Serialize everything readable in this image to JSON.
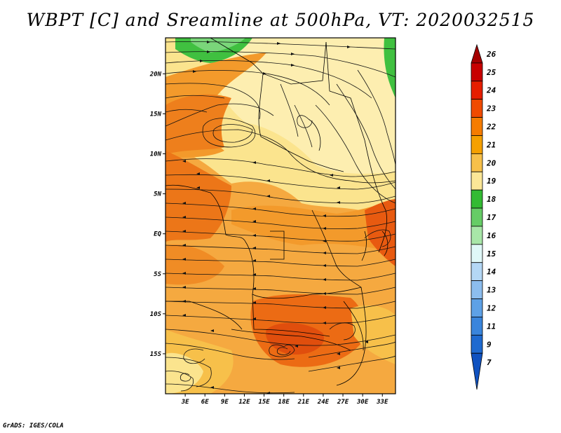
{
  "title": "WBPT [C] and Sreamline at 500hPa, VT: 2020032515",
  "credit": "GrADS: IGES/COLA",
  "map": {
    "lat_labels": [
      "20N",
      "15N",
      "10N",
      "5N",
      "EQ",
      "5S",
      "10S",
      "15S"
    ],
    "lon_labels": [
      "3E",
      "6E",
      "9E",
      "12E",
      "15E",
      "18E",
      "21E",
      "24E",
      "27E",
      "30E",
      "33E"
    ],
    "lon_range": [
      0,
      35
    ],
    "lat_range": [
      -20,
      24.5
    ]
  },
  "colorbar": {
    "levels": [
      "26",
      "25",
      "24",
      "23",
      "22",
      "21",
      "20",
      "19",
      "18",
      "17",
      "16",
      "15",
      "14",
      "13",
      "12",
      "11",
      "9",
      "7"
    ],
    "colors": [
      "#a50000",
      "#c80000",
      "#e61e00",
      "#f04b00",
      "#f57c00",
      "#f5a000",
      "#f7c04a",
      "#fbe697",
      "#33bb33",
      "#66cc66",
      "#a8e6a8",
      "#e0f8f8",
      "#b4d7f5",
      "#8cbdee",
      "#5ea1e6",
      "#3a85dc",
      "#1f6ad0",
      "#1052c0"
    ]
  }
}
